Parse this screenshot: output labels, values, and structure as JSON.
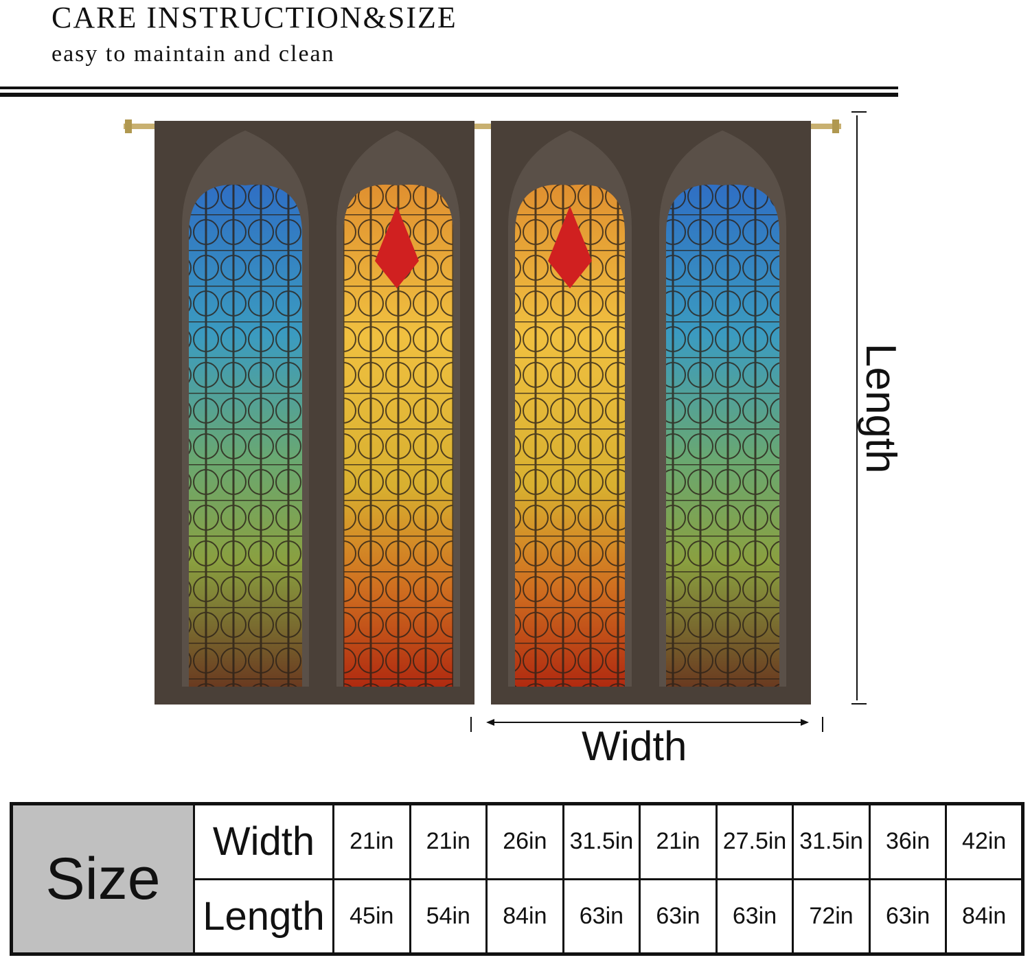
{
  "header": {
    "title": "CARE INSTRUCTION&SIZE",
    "subtitle": "easy to maintain and clean"
  },
  "diagram": {
    "length_label": "Length",
    "width_label": "Width"
  },
  "size_table": {
    "label": "Size",
    "row_labels": [
      "Width",
      "Length"
    ],
    "widths": [
      "21in",
      "21in",
      "26in",
      "31.5in",
      "21in",
      "27.5in",
      "31.5in",
      "36in",
      "42in"
    ],
    "lengths": [
      "45in",
      "54in",
      "84in",
      "63in",
      "63in",
      "63in",
      "72in",
      "63in",
      "84in"
    ]
  },
  "colors": {
    "size_cell": "#c0c0c0",
    "frame": "#4a4038",
    "rod": "#c8b070"
  }
}
